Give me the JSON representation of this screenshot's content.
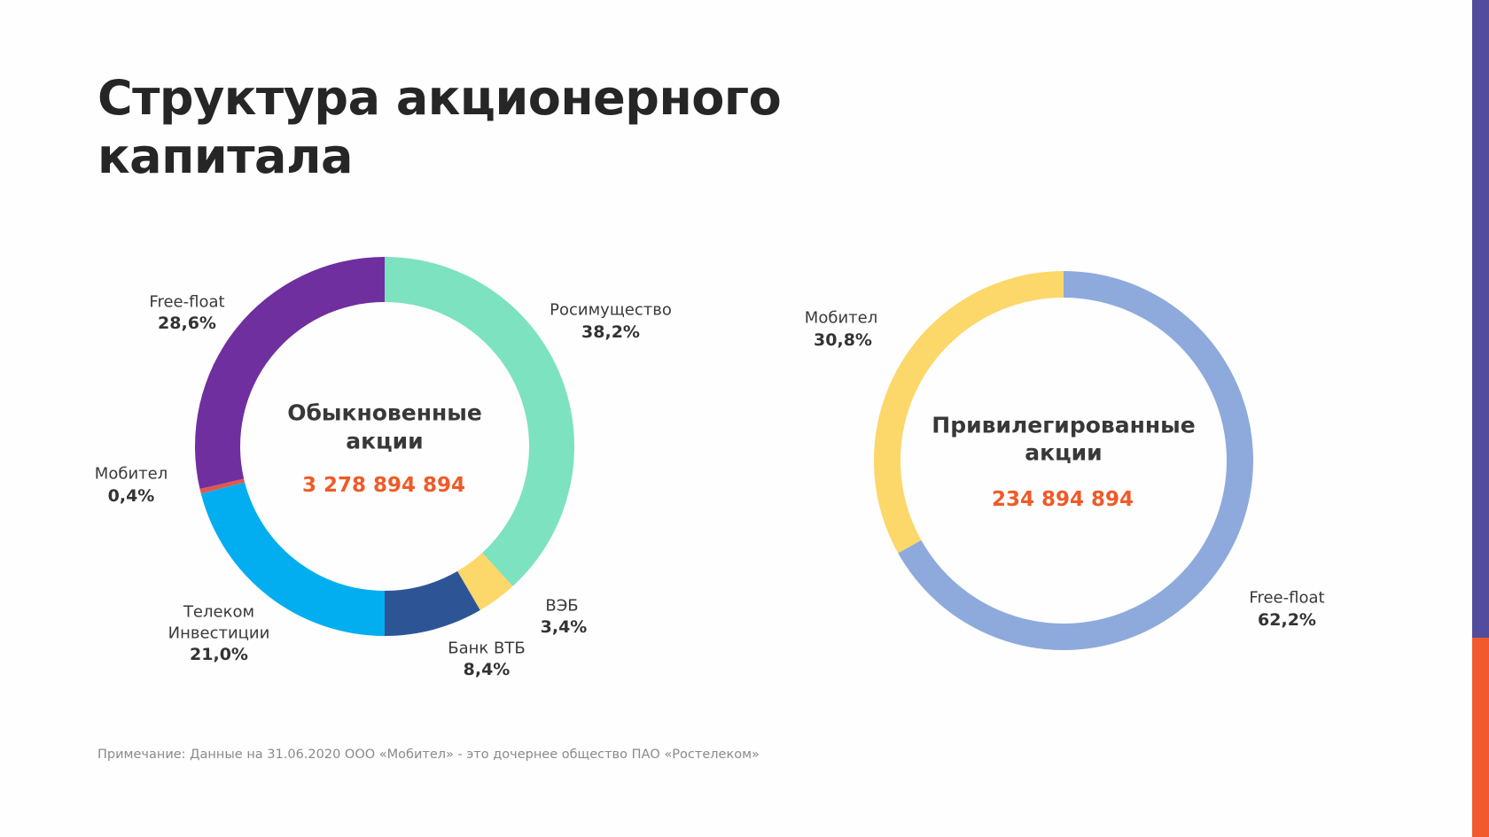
{
  "title_line1": "Структура акционерного",
  "title_line2": "капитала",
  "footnote": "Примечание: Данные на 31.06.2020 ООО «Мобител» - это дочернее общество ПАО «Ростелеком»",
  "colors": {
    "accent_number": "#f05a28",
    "side_bar_top": "#534b9c",
    "side_bar_bottom": "#f05a2e"
  },
  "chart_data": [
    {
      "type": "pie",
      "donut": true,
      "center_title_1": "Обыкновенные",
      "center_title_2": "акции",
      "center_value": "3 278 894 894",
      "slices": [
        {
          "name": "Росимущество",
          "value": 38.2,
          "label": "38,2%",
          "color": "#7de2bf"
        },
        {
          "name": "ВЭБ",
          "value": 3.4,
          "label": "3,4%",
          "color": "#fcd76a"
        },
        {
          "name": "Банк ВТБ",
          "value": 8.4,
          "label": "8,4%",
          "color": "#2d5596"
        },
        {
          "name_1": "Телеком",
          "name_2": "Инвестиции",
          "value": 21.0,
          "label": "21,0%",
          "color": "#02aeef"
        },
        {
          "name": "Мобител",
          "value": 0.4,
          "label": "0,4%",
          "color": "#e2574c"
        },
        {
          "name": "Free-float",
          "value": 28.6,
          "label": "28,6%",
          "color": "#6f2f9f"
        }
      ]
    },
    {
      "type": "pie",
      "donut": true,
      "center_title_1": "Привилегированные",
      "center_title_2": "акции",
      "center_value": "234 894 894",
      "slices": [
        {
          "name": "Free-float",
          "value": 62.2,
          "label": "62,2%",
          "color": "#8eaadc"
        },
        {
          "name": "Мобител",
          "value": 30.8,
          "label": "30,8%",
          "color": "#fcd76a"
        }
      ]
    }
  ]
}
